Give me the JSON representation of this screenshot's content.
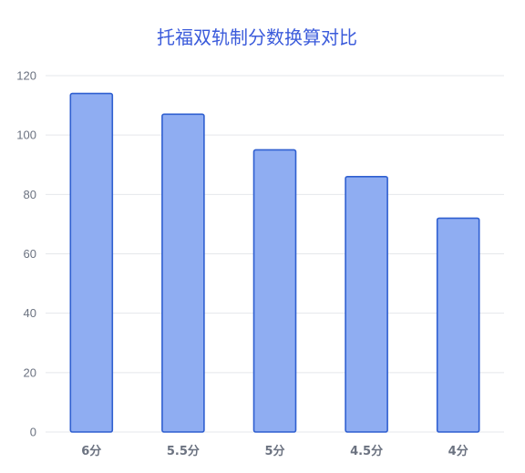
{
  "chart_data": {
    "type": "bar",
    "title": "托福双轨制分数换算对比",
    "categories": [
      "6分",
      "5.5分",
      "5分",
      "4.5分",
      "4分"
    ],
    "values": [
      114,
      107,
      95,
      86,
      72
    ],
    "ylim": [
      0,
      120
    ],
    "yticks": [
      0,
      20,
      40,
      60,
      80,
      100,
      120
    ],
    "grid": true,
    "legend": "none",
    "colors": {
      "title": "#3b5bdb",
      "bar_fill": "#8fadf2",
      "bar_stroke": "#2f5fd0",
      "grid": "#e5e7eb",
      "tick_text": "#6b7280"
    }
  }
}
